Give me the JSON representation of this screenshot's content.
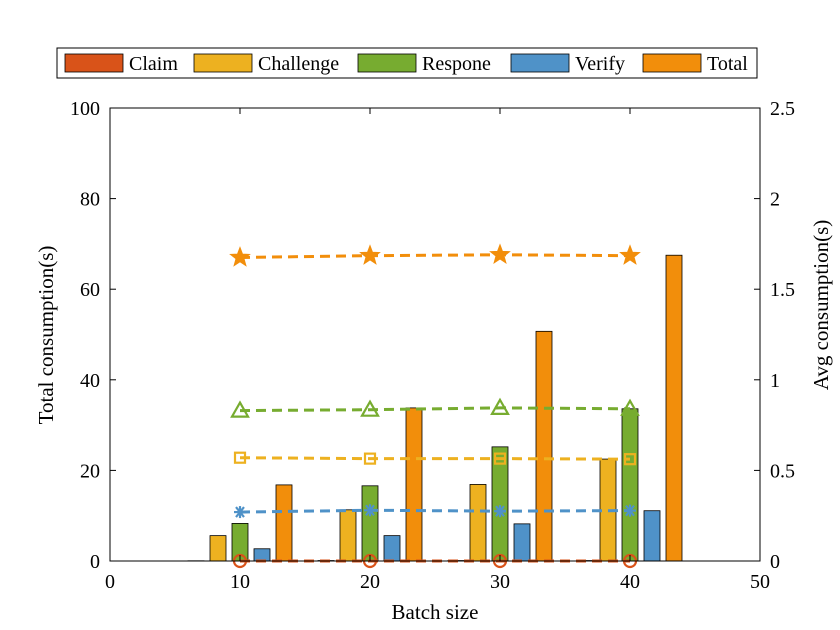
{
  "chart_data": {
    "type": "bar",
    "xlabel": "Batch size",
    "ylabel": "Total consumption(s)",
    "y2label": "Avg consumption(s)",
    "xlim": [
      0,
      50
    ],
    "ylim": [
      0,
      100
    ],
    "y2lim": [
      0,
      2.5
    ],
    "xticks": [
      "0",
      "10",
      "20",
      "30",
      "40",
      "50"
    ],
    "yticks": [
      "0",
      "20",
      "40",
      "60",
      "80",
      "100"
    ],
    "y2ticks": [
      "0",
      "0.5",
      "1",
      "1.5",
      "2",
      "2.5"
    ],
    "grid": false,
    "legend_position": "top",
    "categories": [
      10,
      20,
      30,
      40
    ],
    "series": [
      {
        "name": "Claim",
        "color": "#d95319",
        "values": [
          0.05,
          0.1,
          0.1,
          0.1
        ],
        "avg": [
          0.0,
          0.0,
          0.0,
          0.0
        ],
        "marker": "circle"
      },
      {
        "name": "Challenge",
        "color": "#edb120",
        "values": [
          5.6,
          11.3,
          16.9,
          22.5
        ],
        "avg": [
          0.57,
          0.565,
          0.565,
          0.562
        ],
        "marker": "square"
      },
      {
        "name": "Respone",
        "color": "#77ac30",
        "values": [
          8.3,
          16.6,
          25.2,
          33.6
        ],
        "avg": [
          0.83,
          0.835,
          0.845,
          0.84
        ],
        "marker": "triangle"
      },
      {
        "name": "Verify",
        "color": "#4f92c8",
        "values": [
          2.7,
          5.6,
          8.2,
          11.1
        ],
        "avg": [
          0.27,
          0.28,
          0.275,
          0.278
        ],
        "marker": "asterisk"
      },
      {
        "name": "Total",
        "color": "#f28e0b",
        "values": [
          16.8,
          33.8,
          50.7,
          67.5
        ],
        "avg": [
          1.675,
          1.685,
          1.69,
          1.685
        ],
        "marker": "star"
      }
    ]
  }
}
